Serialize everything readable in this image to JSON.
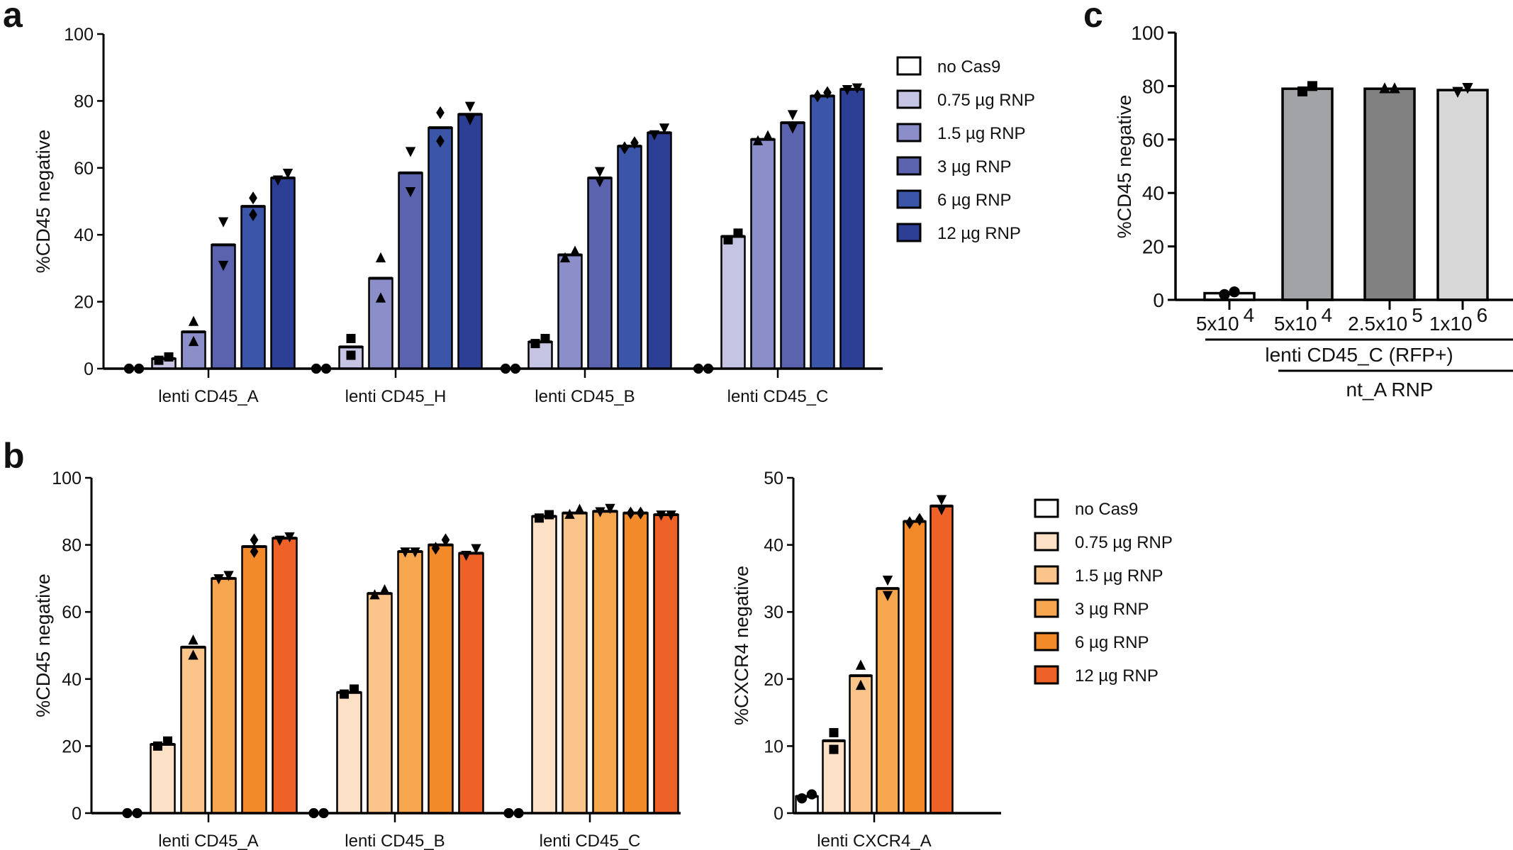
{
  "panels": {
    "a": "a",
    "b": "b",
    "c": "c"
  },
  "legends": {
    "dose_labels": [
      "no Cas9",
      "0.75  µg RNP",
      "1.5  µg RNP",
      "3  µg RNP",
      "6  µg RNP",
      "12  µg RNP"
    ],
    "blue_colors": [
      "#ffffff",
      "#c6c4e3",
      "#8b8ec8",
      "#5b63ae",
      "#3b55a8",
      "#2d3e95"
    ],
    "orange_colors": [
      "#ffffff",
      "#fde1c7",
      "#fbc48b",
      "#f6a64f",
      "#f38a29",
      "#ee6228"
    ],
    "markers": [
      "circle",
      "square",
      "triangle-up",
      "triangle-down",
      "diamond",
      "triangle-down"
    ]
  },
  "chart_data": [
    {
      "id": "a",
      "type": "bar",
      "ylabel": "%CD45 negative",
      "ylim": [
        0,
        100
      ],
      "yticks": [
        "0",
        "20",
        "40",
        "60",
        "80",
        "100"
      ],
      "palette": "blue",
      "legend": "right",
      "categories": [
        "lenti CD45_A",
        "lenti CD45_H",
        "lenti CD45_B",
        "lenti CD45_C"
      ],
      "series_values": [
        [
          0,
          3,
          11,
          37,
          48.5,
          57
        ],
        [
          0,
          6.5,
          27,
          58.5,
          72,
          76
        ],
        [
          0,
          8,
          34,
          57,
          66.5,
          70.5
        ],
        [
          0,
          39.5,
          68.5,
          73.5,
          81.5,
          83.5
        ]
      ],
      "points": [
        [
          [
            0,
            0
          ],
          [
            2.5,
            3.5
          ],
          [
            8,
            14
          ],
          [
            31,
            44
          ],
          [
            46,
            51
          ],
          [
            56.5,
            58.5
          ]
        ],
        [
          [
            0,
            0
          ],
          [
            4,
            9
          ],
          [
            21,
            33
          ],
          [
            53,
            65
          ],
          [
            68,
            76.5
          ],
          [
            74.5,
            78.5
          ]
        ],
        [
          [
            0,
            0
          ],
          [
            7.5,
            9
          ],
          [
            33,
            35
          ],
          [
            56,
            59
          ],
          [
            66,
            67.5
          ],
          [
            70,
            72
          ]
        ],
        [
          [
            0,
            0
          ],
          [
            38.5,
            40.5
          ],
          [
            68,
            69.5
          ],
          [
            72,
            76
          ],
          [
            81.5,
            82.5
          ],
          [
            83.5,
            84
          ]
        ]
      ]
    },
    {
      "id": "b-left",
      "type": "bar",
      "ylabel": "%CD45 negative",
      "ylim": [
        0,
        100
      ],
      "yticks": [
        "0",
        "20",
        "40",
        "60",
        "80",
        "100"
      ],
      "palette": "orange",
      "categories": [
        "lenti CD45_A",
        "lenti CD45_B",
        "lenti CD45_C"
      ],
      "series_values": [
        [
          0,
          20.5,
          49.5,
          70,
          79.5,
          82
        ],
        [
          0,
          36,
          65.5,
          78,
          80,
          77.5
        ],
        [
          0,
          88.5,
          89.5,
          90,
          89.5,
          89
        ]
      ],
      "points": [
        [
          [
            0,
            0
          ],
          [
            20,
            21.5
          ],
          [
            47,
            51.5
          ],
          [
            70,
            71
          ],
          [
            78,
            81.5
          ],
          [
            81.5,
            82.5
          ]
        ],
        [
          [
            0,
            0
          ],
          [
            35.5,
            37
          ],
          [
            65,
            66.5
          ],
          [
            78,
            78
          ],
          [
            79,
            81.5
          ],
          [
            77,
            79
          ]
        ],
        [
          [
            0,
            0
          ],
          [
            88,
            89
          ],
          [
            89,
            90.5
          ],
          [
            90,
            91
          ],
          [
            89.5,
            89.5
          ],
          [
            89,
            89
          ]
        ]
      ]
    },
    {
      "id": "b-right",
      "type": "bar",
      "ylabel": "%CXCR4 negative",
      "ylim": [
        0,
        50
      ],
      "yticks": [
        "0",
        "10",
        "20",
        "30",
        "40",
        "50"
      ],
      "palette": "orange",
      "legend": "right",
      "categories": [
        "lenti CXCR4_A"
      ],
      "series_values": [
        [
          2.5,
          10.8,
          20.5,
          33.5,
          43.5,
          45.8
        ]
      ],
      "points": [
        [
          [
            2.2,
            2.8
          ],
          [
            9.5,
            12
          ],
          [
            19,
            22
          ],
          [
            32.5,
            34.8
          ],
          [
            43.3,
            43.8
          ],
          [
            45.3,
            46.8
          ]
        ]
      ]
    },
    {
      "id": "c",
      "type": "bar",
      "ylabel": "%CD45 negative",
      "ylim": [
        0,
        100
      ],
      "yticks": [
        "0",
        "20",
        "40",
        "60",
        "80",
        "100"
      ],
      "categories": [
        {
          "base": "5x10",
          "exp": "4"
        },
        {
          "base": "5x10",
          "exp": "4"
        },
        {
          "base": "2.5x10",
          "exp": "5"
        },
        {
          "base": "1x10",
          "exp": "6"
        }
      ],
      "values": [
        2.5,
        79,
        79,
        78.5
      ],
      "points": [
        [
          2,
          3
        ],
        [
          78,
          80
        ],
        [
          79,
          79
        ],
        [
          78,
          79.5
        ]
      ],
      "markers": [
        "circle",
        "square",
        "triangle-up",
        "triangle-down"
      ],
      "colors": [
        "#ffffff",
        "#a1a3a7",
        "#808180",
        "#d7d7d7"
      ],
      "group_labels": [
        "lenti CD45_C (RFP+)",
        "nt_A RNP"
      ]
    }
  ]
}
